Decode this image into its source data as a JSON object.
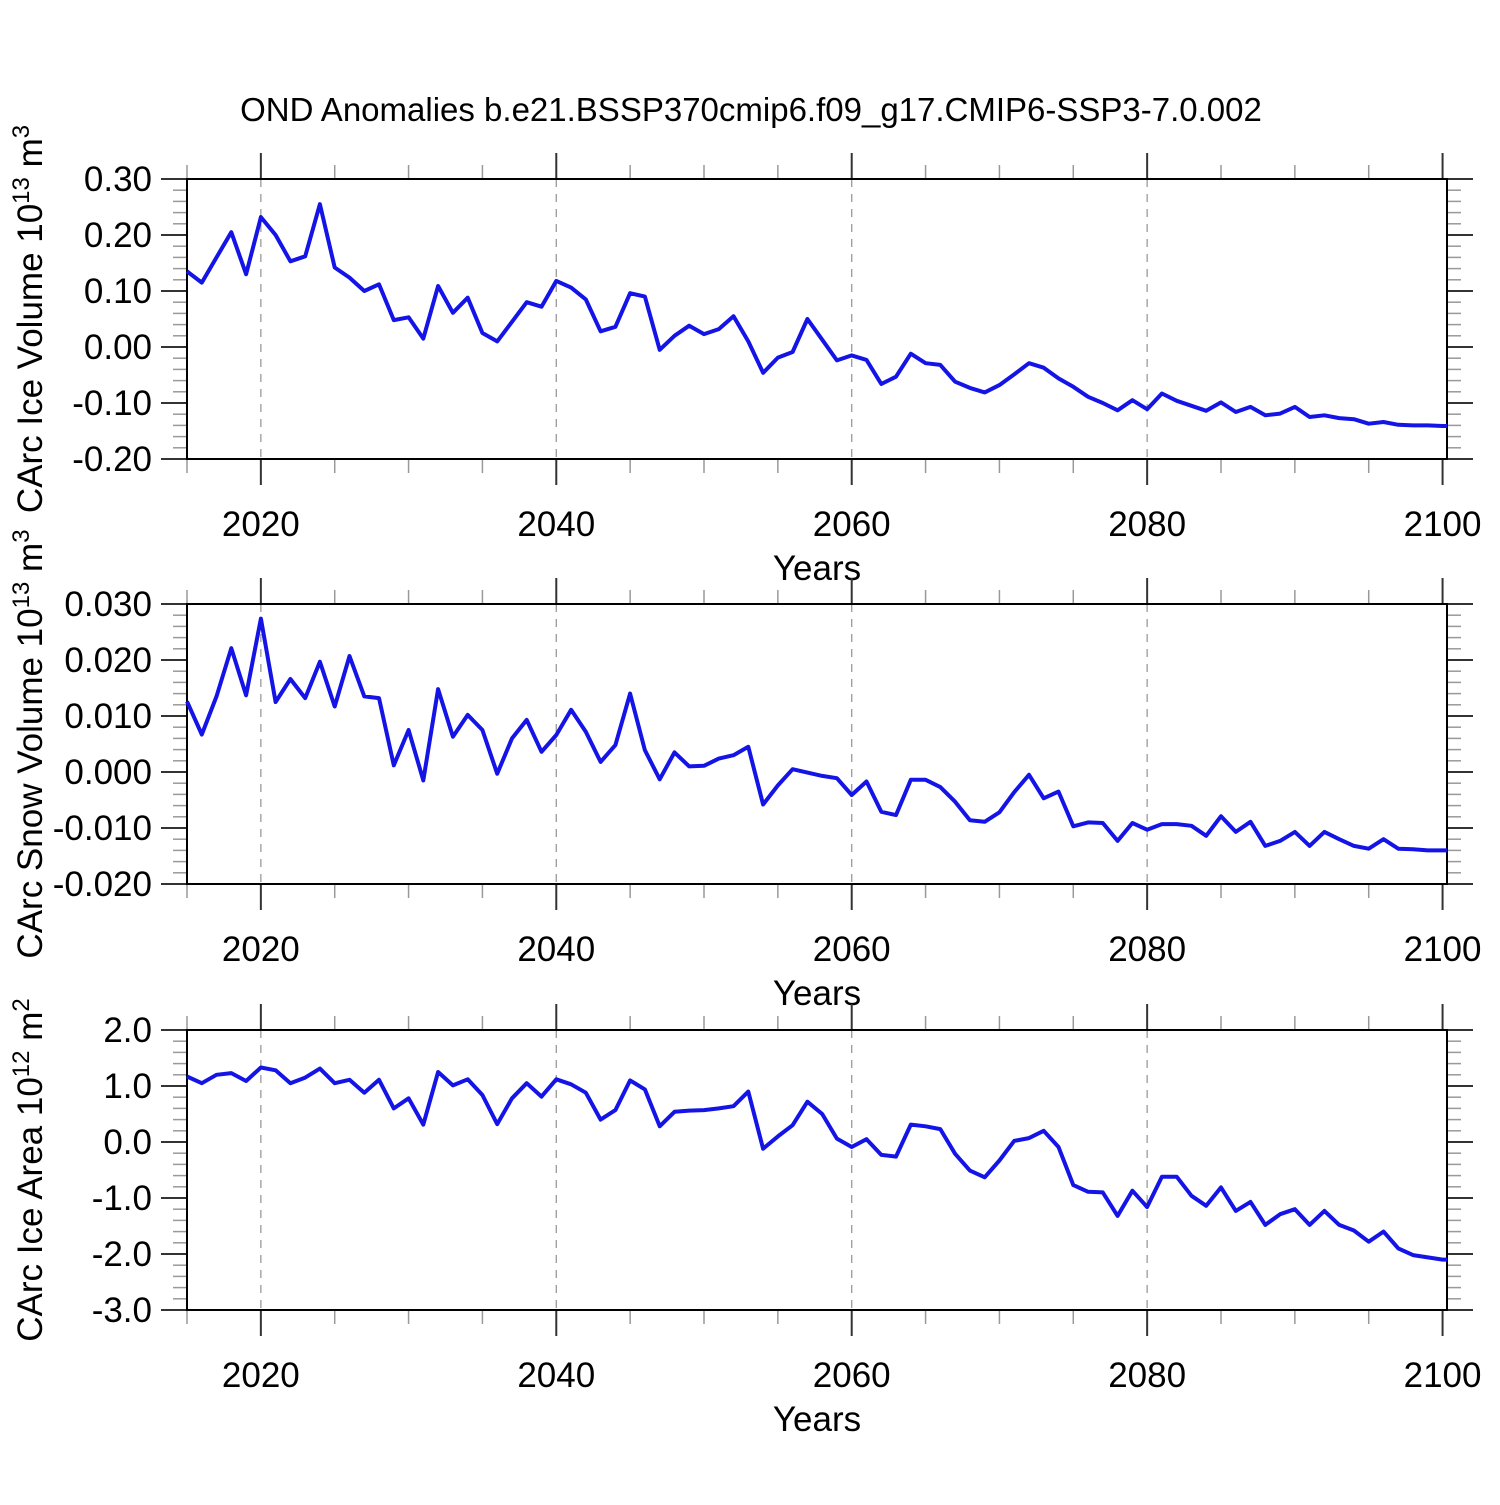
{
  "title": "OND Anomalies b.e21.BSSP370cmip6.f09_g17.CMIP6-SSP3-7.0.002",
  "colors": {
    "line": "#1414E6",
    "frame": "#000000",
    "major_tick": "#333333",
    "minor_tick": "#999999",
    "grid": "#9A9A9A",
    "background": "#FFFFFF",
    "text": "#000000"
  },
  "chart_data": [
    {
      "type": "line",
      "name": "ice-volume",
      "ylabel_segments": [
        {
          "text": "CArc Ice Volume 10"
        },
        {
          "text": "13",
          "sup": true
        },
        {
          "text": " m"
        },
        {
          "text": "3",
          "sup": true
        }
      ],
      "xlabel": "Years",
      "xlim": [
        2015,
        2100.3
      ],
      "ylim": [
        -0.2,
        0.3
      ],
      "x_major_ticks": [
        2020,
        2040,
        2060,
        2080,
        2100
      ],
      "x_tick_labels": [
        "2020",
        "2040",
        "2060",
        "2080",
        "2100"
      ],
      "x_minor_step": 5,
      "grid_x": [
        2020,
        2040,
        2060,
        2080
      ],
      "y_major_ticks": [
        0.3,
        0.2,
        0.1,
        0.0,
        -0.1,
        -0.2
      ],
      "y_tick_labels": [
        "0.30",
        "0.20",
        "0.10",
        "0.00",
        "-0.10",
        "-0.20"
      ],
      "y_minor_step": 0.02,
      "x_start": 2015,
      "x_step": 1,
      "values": [
        0.135,
        0.115,
        0.16,
        0.205,
        0.13,
        0.232,
        0.2,
        0.153,
        0.162,
        0.255,
        0.142,
        0.124,
        0.1,
        0.112,
        0.048,
        0.053,
        0.015,
        0.109,
        0.061,
        0.088,
        0.025,
        0.01,
        0.045,
        0.08,
        0.072,
        0.118,
        0.106,
        0.085,
        0.028,
        0.036,
        0.096,
        0.09,
        -0.005,
        0.02,
        0.038,
        0.023,
        0.032,
        0.055,
        0.01,
        -0.046,
        -0.019,
        -0.009,
        0.05,
        0.013,
        -0.024,
        -0.015,
        -0.023,
        -0.066,
        -0.053,
        -0.012,
        -0.029,
        -0.032,
        -0.062,
        -0.073,
        -0.081,
        -0.068,
        -0.049,
        -0.029,
        -0.037,
        -0.056,
        -0.071,
        -0.089,
        -0.1,
        -0.113,
        -0.095,
        -0.111,
        -0.083,
        -0.096,
        -0.105,
        -0.114,
        -0.099,
        -0.116,
        -0.107,
        -0.122,
        -0.119,
        -0.107,
        -0.125,
        -0.122,
        -0.127,
        -0.129,
        -0.137,
        -0.134,
        -0.139,
        -0.14,
        -0.14,
        -0.141
      ]
    },
    {
      "type": "line",
      "name": "snow-volume",
      "ylabel_segments": [
        {
          "text": "CArc Snow Volume 10"
        },
        {
          "text": "13",
          "sup": true
        },
        {
          "text": " m"
        },
        {
          "text": "3",
          "sup": true
        }
      ],
      "xlabel": "Years",
      "xlim": [
        2015,
        2100.3
      ],
      "ylim": [
        -0.02,
        0.03
      ],
      "x_major_ticks": [
        2020,
        2040,
        2060,
        2080,
        2100
      ],
      "x_tick_labels": [
        "2020",
        "2040",
        "2060",
        "2080",
        "2100"
      ],
      "x_minor_step": 5,
      "grid_x": [
        2020,
        2040,
        2060,
        2080
      ],
      "y_major_ticks": [
        0.03,
        0.02,
        0.01,
        0.0,
        -0.01,
        -0.02
      ],
      "y_tick_labels": [
        "0.030",
        "0.020",
        "0.010",
        "0.000",
        "-0.010",
        "-0.020"
      ],
      "y_minor_step": 0.002,
      "x_start": 2015,
      "x_step": 1,
      "values": [
        0.0126,
        0.0067,
        0.0135,
        0.0221,
        0.0137,
        0.0274,
        0.0125,
        0.0166,
        0.0132,
        0.0197,
        0.0117,
        0.0207,
        0.0135,
        0.0132,
        0.0012,
        0.0075,
        -0.0015,
        0.0148,
        0.0063,
        0.0102,
        0.0075,
        -0.0003,
        0.006,
        0.0093,
        0.0036,
        0.0066,
        0.0111,
        0.0072,
        0.0018,
        0.0048,
        0.014,
        0.0039,
        -0.0013,
        0.0035,
        0.001,
        0.0011,
        0.0024,
        0.003,
        0.0045,
        -0.0058,
        -0.0024,
        0.0005,
        -0.0001,
        -0.0007,
        -0.0011,
        -0.0041,
        -0.0017,
        -0.0071,
        -0.0077,
        -0.0014,
        -0.0014,
        -0.0027,
        -0.0053,
        -0.0086,
        -0.0089,
        -0.0072,
        -0.0036,
        -0.0005,
        -0.0047,
        -0.0035,
        -0.0097,
        -0.009,
        -0.0091,
        -0.0123,
        -0.0091,
        -0.0103,
        -0.0093,
        -0.0093,
        -0.0096,
        -0.0114,
        -0.0079,
        -0.0107,
        -0.0089,
        -0.0132,
        -0.0123,
        -0.0107,
        -0.0132,
        -0.0107,
        -0.012,
        -0.0132,
        -0.0137,
        -0.012,
        -0.0137,
        -0.0138,
        -0.014,
        -0.014
      ]
    },
    {
      "type": "line",
      "name": "ice-area",
      "ylabel_segments": [
        {
          "text": "CArc Ice Area 10"
        },
        {
          "text": "12",
          "sup": true
        },
        {
          "text": " m"
        },
        {
          "text": "2",
          "sup": true
        }
      ],
      "xlabel": "Years",
      "xlim": [
        2015,
        2100.3
      ],
      "ylim": [
        -3.0,
        2.0
      ],
      "x_major_ticks": [
        2020,
        2040,
        2060,
        2080,
        2100
      ],
      "x_tick_labels": [
        "2020",
        "2040",
        "2060",
        "2080",
        "2100"
      ],
      "x_minor_step": 5,
      "grid_x": [
        2020,
        2040,
        2060,
        2080
      ],
      "y_major_ticks": [
        2.0,
        1.0,
        0.0,
        -1.0,
        -2.0,
        -3.0
      ],
      "y_tick_labels": [
        "2.0",
        "1.0",
        "0.0",
        "-1.0",
        "-2.0",
        "-3.0"
      ],
      "y_minor_step": 0.2,
      "x_start": 2015,
      "x_step": 1,
      "values": [
        1.17,
        1.05,
        1.2,
        1.23,
        1.09,
        1.33,
        1.28,
        1.05,
        1.15,
        1.31,
        1.05,
        1.11,
        0.88,
        1.11,
        0.6,
        0.78,
        0.31,
        1.25,
        1.01,
        1.12,
        0.84,
        0.32,
        0.78,
        1.05,
        0.81,
        1.12,
        1.03,
        0.88,
        0.4,
        0.57,
        1.1,
        0.94,
        0.28,
        0.54,
        0.56,
        0.57,
        0.6,
        0.64,
        0.9,
        -0.12,
        0.1,
        0.3,
        0.72,
        0.5,
        0.06,
        -0.09,
        0.05,
        -0.23,
        -0.26,
        0.31,
        0.28,
        0.23,
        -0.21,
        -0.51,
        -0.63,
        -0.33,
        0.02,
        0.07,
        0.2,
        -0.09,
        -0.77,
        -0.89,
        -0.9,
        -1.32,
        -0.87,
        -1.16,
        -0.62,
        -0.62,
        -0.96,
        -1.14,
        -0.81,
        -1.23,
        -1.07,
        -1.48,
        -1.29,
        -1.2,
        -1.48,
        -1.23,
        -1.48,
        -1.58,
        -1.78,
        -1.6,
        -1.9,
        -2.02,
        -2.06,
        -2.1
      ]
    }
  ]
}
